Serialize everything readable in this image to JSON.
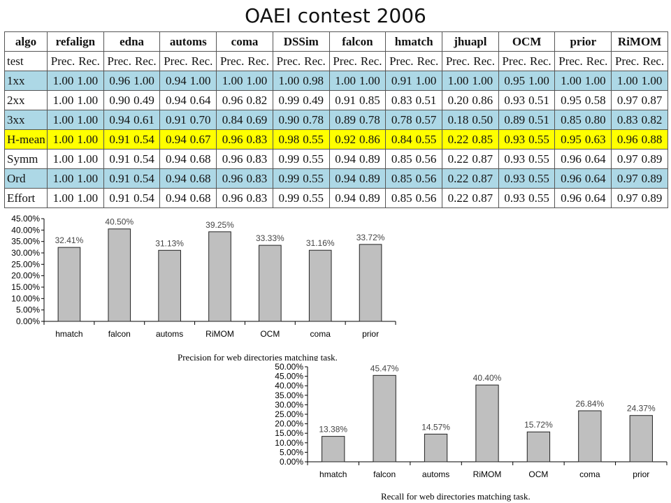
{
  "title": "OAEI contest 2006",
  "table": {
    "corner": "algo",
    "algos": [
      "refalign",
      "edna",
      "automs",
      "coma",
      "DSSim",
      "falcon",
      "hmatch",
      "jhuapl",
      "OCM",
      "prior",
      "RiMOM"
    ],
    "subheader_label": "test",
    "subheader_pair": [
      "Prec.",
      "Rec."
    ],
    "rows": [
      {
        "label": "1xx",
        "style": "blue",
        "values": [
          [
            "1.00",
            "1.00"
          ],
          [
            "0.96",
            "1.00"
          ],
          [
            "0.94",
            "1.00"
          ],
          [
            "1.00",
            "1.00"
          ],
          [
            "1.00",
            "0.98"
          ],
          [
            "1.00",
            "1.00"
          ],
          [
            "0.91",
            "1.00"
          ],
          [
            "1.00",
            "1.00"
          ],
          [
            "0.95",
            "1.00"
          ],
          [
            "1.00",
            "1.00"
          ],
          [
            "1.00",
            "1.00"
          ]
        ]
      },
      {
        "label": "2xx",
        "style": "white",
        "values": [
          [
            "1.00",
            "1.00"
          ],
          [
            "0.90",
            "0.49"
          ],
          [
            "0.94",
            "0.64"
          ],
          [
            "0.96",
            "0.82"
          ],
          [
            "0.99",
            "0.49"
          ],
          [
            "0.91",
            "0.85"
          ],
          [
            "0.83",
            "0.51"
          ],
          [
            "0.20",
            "0.86"
          ],
          [
            "0.93",
            "0.51"
          ],
          [
            "0.95",
            "0.58"
          ],
          [
            "0.97",
            "0.87"
          ]
        ]
      },
      {
        "label": "3xx",
        "style": "blue",
        "values": [
          [
            "1.00",
            "1.00"
          ],
          [
            "0.94",
            "0.61"
          ],
          [
            "0.91",
            "0.70"
          ],
          [
            "0.84",
            "0.69"
          ],
          [
            "0.90",
            "0.78"
          ],
          [
            "0.89",
            "0.78"
          ],
          [
            "0.78",
            "0.57"
          ],
          [
            "0.18",
            "0.50"
          ],
          [
            "0.89",
            "0.51"
          ],
          [
            "0.85",
            "0.80"
          ],
          [
            "0.83",
            "0.82"
          ]
        ]
      },
      {
        "label": "H-mean",
        "style": "yellow",
        "values": [
          [
            "1.00",
            "1.00"
          ],
          [
            "0.91",
            "0.54"
          ],
          [
            "0.94",
            "0.67"
          ],
          [
            "0.96",
            "0.83"
          ],
          [
            "0.98",
            "0.55"
          ],
          [
            "0.92",
            "0.86"
          ],
          [
            "0.84",
            "0.55"
          ],
          [
            "0.22",
            "0.85"
          ],
          [
            "0.93",
            "0.55"
          ],
          [
            "0.95",
            "0.63"
          ],
          [
            "0.96",
            "0.88"
          ]
        ]
      },
      {
        "label": "Symm",
        "style": "white",
        "values": [
          [
            "1.00",
            "1.00"
          ],
          [
            "0.91",
            "0.54"
          ],
          [
            "0.94",
            "0.68"
          ],
          [
            "0.96",
            "0.83"
          ],
          [
            "0.99",
            "0.55"
          ],
          [
            "0.94",
            "0.89"
          ],
          [
            "0.85",
            "0.56"
          ],
          [
            "0.22",
            "0.87"
          ],
          [
            "0.93",
            "0.55"
          ],
          [
            "0.96",
            "0.64"
          ],
          [
            "0.97",
            "0.89"
          ]
        ]
      },
      {
        "label": "Ord",
        "style": "blue",
        "values": [
          [
            "1.00",
            "1.00"
          ],
          [
            "0.91",
            "0.54"
          ],
          [
            "0.94",
            "0.68"
          ],
          [
            "0.96",
            "0.83"
          ],
          [
            "0.99",
            "0.55"
          ],
          [
            "0.94",
            "0.89"
          ],
          [
            "0.85",
            "0.56"
          ],
          [
            "0.22",
            "0.87"
          ],
          [
            "0.93",
            "0.55"
          ],
          [
            "0.96",
            "0.64"
          ],
          [
            "0.97",
            "0.89"
          ]
        ]
      },
      {
        "label": "Effort",
        "style": "white",
        "values": [
          [
            "1.00",
            "1.00"
          ],
          [
            "0.91",
            "0.54"
          ],
          [
            "0.94",
            "0.68"
          ],
          [
            "0.96",
            "0.83"
          ],
          [
            "0.99",
            "0.55"
          ],
          [
            "0.94",
            "0.89"
          ],
          [
            "0.85",
            "0.56"
          ],
          [
            "0.22",
            "0.87"
          ],
          [
            "0.93",
            "0.55"
          ],
          [
            "0.96",
            "0.64"
          ],
          [
            "0.97",
            "0.89"
          ]
        ]
      }
    ],
    "colors": {
      "blue": "#add8e6",
      "white": "#ffffff",
      "yellow": "#ffff00"
    }
  },
  "chart_data": [
    {
      "type": "bar",
      "categories": [
        "hmatch",
        "falcon",
        "automs",
        "RiMOM",
        "OCM",
        "coma",
        "prior"
      ],
      "values": [
        32.41,
        40.5,
        31.13,
        39.25,
        33.33,
        31.16,
        33.72
      ],
      "data_labels": [
        "32.41%",
        "40.50%",
        "31.13%",
        "39.25%",
        "33.33%",
        "31.16%",
        "33.72%"
      ],
      "title": "",
      "caption": "Precision for web directories matching task.",
      "xlabel": "",
      "ylabel": "",
      "ylim": [
        0,
        45
      ],
      "ytick_step": 5,
      "ytick_labels": [
        "0.00%",
        "5.00%",
        "10.00%",
        "15.00%",
        "20.00%",
        "25.00%",
        "30.00%",
        "35.00%",
        "40.00%",
        "45.00%"
      ],
      "grid": false,
      "bar_color": "#bfbfbf"
    },
    {
      "type": "bar",
      "categories": [
        "hmatch",
        "falcon",
        "automs",
        "RiMOM",
        "OCM",
        "coma",
        "prior"
      ],
      "values": [
        13.38,
        45.47,
        14.57,
        40.4,
        15.72,
        26.84,
        24.37
      ],
      "data_labels": [
        "13.38%",
        "45.47%",
        "14.57%",
        "40.40%",
        "15.72%",
        "26.84%",
        "24.37%"
      ],
      "title": "",
      "caption": "Recall for web directories matching task.",
      "xlabel": "",
      "ylabel": "",
      "ylim": [
        0,
        50
      ],
      "ytick_step": 5,
      "ytick_labels": [
        "0.00%",
        "5.00%",
        "10.00%",
        "15.00%",
        "20.00%",
        "25.00%",
        "30.00%",
        "35.00%",
        "40.00%",
        "45.00%",
        "50.00%"
      ],
      "grid": false,
      "bar_color": "#bfbfbf"
    }
  ]
}
